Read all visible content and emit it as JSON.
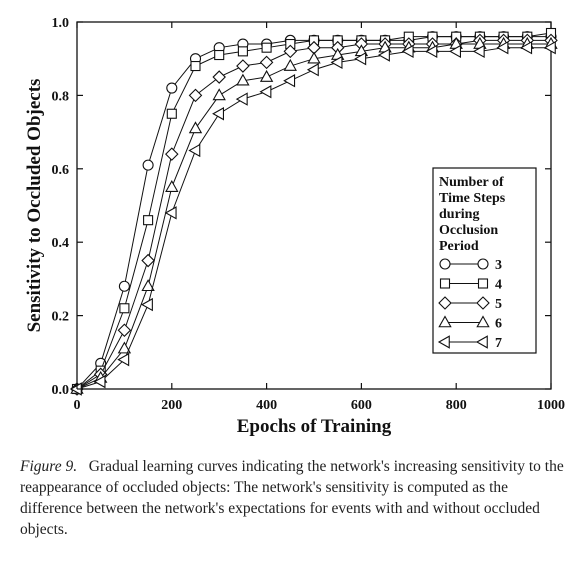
{
  "chart_data": {
    "type": "line",
    "title": "",
    "xlabel": "Epochs of Training",
    "ylabel": "Sensitivity to Occluded Objects",
    "xlim": [
      0,
      1000
    ],
    "ylim": [
      0,
      1.0
    ],
    "xticks": [
      "0",
      "200",
      "400",
      "600",
      "800",
      "1000"
    ],
    "yticks": [
      "0.0",
      "0.2",
      "0.4",
      "0.6",
      "0.8",
      "1.0"
    ],
    "grid": false,
    "legend_title": "Number of Time Steps during Occlusion Period",
    "legend_position": "right",
    "x": [
      0,
      50,
      100,
      150,
      200,
      250,
      300,
      350,
      400,
      450,
      500,
      550,
      600,
      650,
      700,
      750,
      800,
      850,
      900,
      950,
      1000
    ],
    "series": [
      {
        "name": "3",
        "marker": "circle",
        "values": [
          0.0,
          0.07,
          0.28,
          0.61,
          0.82,
          0.9,
          0.93,
          0.94,
          0.94,
          0.95,
          0.95,
          0.95,
          0.95,
          0.95,
          0.95,
          0.96,
          0.96,
          0.96,
          0.96,
          0.96,
          0.96
        ]
      },
      {
        "name": "4",
        "marker": "square",
        "values": [
          0.0,
          0.05,
          0.22,
          0.46,
          0.75,
          0.88,
          0.91,
          0.92,
          0.93,
          0.94,
          0.95,
          0.95,
          0.95,
          0.95,
          0.96,
          0.96,
          0.96,
          0.96,
          0.96,
          0.96,
          0.97
        ]
      },
      {
        "name": "5",
        "marker": "diamond",
        "values": [
          0.0,
          0.04,
          0.16,
          0.35,
          0.64,
          0.8,
          0.85,
          0.88,
          0.89,
          0.92,
          0.93,
          0.93,
          0.94,
          0.94,
          0.94,
          0.94,
          0.94,
          0.95,
          0.95,
          0.95,
          0.95
        ]
      },
      {
        "name": "6",
        "marker": "triangle-up",
        "values": [
          0.0,
          0.03,
          0.11,
          0.28,
          0.55,
          0.71,
          0.8,
          0.84,
          0.85,
          0.88,
          0.9,
          0.91,
          0.92,
          0.93,
          0.93,
          0.93,
          0.94,
          0.94,
          0.94,
          0.94,
          0.94
        ]
      },
      {
        "name": "7",
        "marker": "triangle-left",
        "values": [
          0.0,
          0.02,
          0.08,
          0.23,
          0.48,
          0.65,
          0.75,
          0.79,
          0.81,
          0.84,
          0.87,
          0.89,
          0.9,
          0.91,
          0.92,
          0.92,
          0.92,
          0.92,
          0.93,
          0.93,
          0.93
        ]
      }
    ]
  },
  "caption": {
    "figure_label": "Figure 9.",
    "text": "Gradual learning curves indicating the network's increasing sensitivity to the reappearance of occluded objects: The network's sensitivity is computed as the difference between the network's expectations for events with and without occluded objects."
  }
}
